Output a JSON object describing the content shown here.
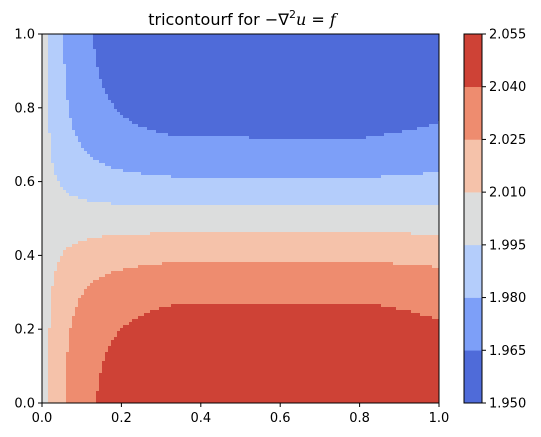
{
  "chart_data": {
    "type": "heatmap",
    "subtype": "filled-contour",
    "title": {
      "prefix": "tricontourf for ",
      "minus": "−",
      "nabla": "∇",
      "power": "2",
      "u": "u",
      "equals": " = ",
      "f": "f"
    },
    "xlim": [
      0.0,
      1.0
    ],
    "ylim": [
      0.0,
      1.0
    ],
    "x_ticks": [
      "0.0",
      "0.2",
      "0.4",
      "0.6",
      "0.8",
      "1.0"
    ],
    "y_ticks": [
      "0.0",
      "0.2",
      "0.4",
      "0.6",
      "0.8",
      "1.0"
    ],
    "colormap": "coolwarm",
    "levels": [
      1.95,
      1.965,
      1.98,
      1.995,
      2.01,
      2.025,
      2.04,
      2.055
    ],
    "level_labels": [
      "1.950",
      "1.965",
      "1.980",
      "1.995",
      "2.010",
      "2.025",
      "2.040",
      "2.055"
    ],
    "band_colors": [
      "#4f6bd9",
      "#7d9ff8",
      "#b4cdfb",
      "#dcdddd",
      "#f5c2aa",
      "#ee8c6f",
      "#ce4236"
    ],
    "field": {
      "base": 2.002,
      "amplitude": 0.05,
      "x_spread": 0.075,
      "x_peak": 0.575,
      "y_center": 0.5,
      "y_scale": 0.6
    },
    "colorbar": {
      "orientation": "vertical",
      "location": "right"
    }
  }
}
